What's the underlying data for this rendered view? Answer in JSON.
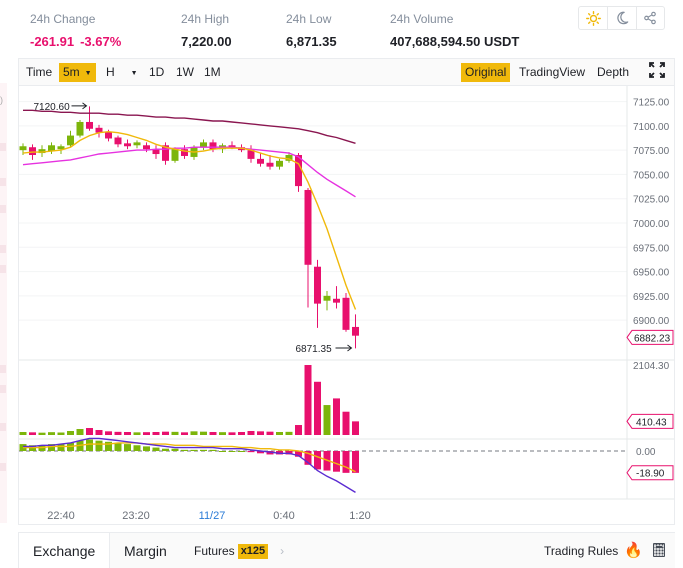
{
  "stats": [
    {
      "label": "24h Change",
      "value": "-261.91",
      "value2": "-3.67%",
      "negative": true
    },
    {
      "label": "24h High",
      "value": "7,220.00"
    },
    {
      "label": "24h Low",
      "value": "6,871.35"
    },
    {
      "label": "24h Volume",
      "value": "407,688,594.50 USDT"
    }
  ],
  "theme_icons": [
    "sun-icon",
    "moon-icon",
    "share-icon"
  ],
  "toolbar": {
    "time_label": "Time",
    "interval": "5m",
    "hour": "H",
    "d1": "1D",
    "w1": "1W",
    "m1": "1M",
    "original": "Original",
    "tradingview": "TradingView",
    "depth": "Depth"
  },
  "colors": {
    "up": "#7cb50a",
    "down": "#e8106d",
    "ma7": "#f0b90b",
    "ma25": "#e632e0",
    "ma99": "#8a1650",
    "accent": "#f0b90b"
  },
  "chart_data": {
    "type": "candlestick",
    "price_axis": {
      "ticks": [
        7125,
        7100,
        7075,
        7050,
        7025,
        7000,
        6975,
        6950,
        6925,
        6900
      ],
      "tick_labels": [
        "7125.00",
        "7100.00",
        "7075.00",
        "7050.00",
        "7025.00",
        "7000.00",
        "6975.00",
        "6950.00",
        "6925.00",
        "6900.00"
      ],
      "range": [
        6860,
        7140
      ]
    },
    "current_price": "6882.23",
    "high_marker": "7120.60",
    "low_marker": "6871.35",
    "volume_axis": {
      "top_label": "2104.30",
      "current_label": "410.43"
    },
    "macd_axis": {
      "zero_label": "0.00",
      "current_label": "-18.90"
    },
    "time_labels": [
      "22:40",
      "23:20",
      "11/27",
      "0:40",
      "1:20"
    ],
    "candles": [
      {
        "o": 7075,
        "h": 7082,
        "l": 7070,
        "c": 7079
      },
      {
        "o": 7078,
        "h": 7081,
        "l": 7065,
        "c": 7070
      },
      {
        "o": 7072,
        "h": 7080,
        "l": 7068,
        "c": 7076
      },
      {
        "o": 7074,
        "h": 7083,
        "l": 7071,
        "c": 7080
      },
      {
        "o": 7076,
        "h": 7081,
        "l": 7071,
        "c": 7079
      },
      {
        "o": 7080,
        "h": 7095,
        "l": 7078,
        "c": 7090
      },
      {
        "o": 7090,
        "h": 7106,
        "l": 7088,
        "c": 7104
      },
      {
        "o": 7104,
        "h": 7120,
        "l": 7095,
        "c": 7097
      },
      {
        "o": 7098,
        "h": 7101,
        "l": 7088,
        "c": 7093
      },
      {
        "o": 7094,
        "h": 7096,
        "l": 7084,
        "c": 7087
      },
      {
        "o": 7088,
        "h": 7090,
        "l": 7078,
        "c": 7081
      },
      {
        "o": 7082,
        "h": 7086,
        "l": 7076,
        "c": 7079
      },
      {
        "o": 7080,
        "h": 7085,
        "l": 7077,
        "c": 7083
      },
      {
        "o": 7080,
        "h": 7083,
        "l": 7073,
        "c": 7076
      },
      {
        "o": 7076,
        "h": 7080,
        "l": 7066,
        "c": 7071
      },
      {
        "o": 7080,
        "h": 7083,
        "l": 7060,
        "c": 7064
      },
      {
        "o": 7064,
        "h": 7078,
        "l": 7062,
        "c": 7076
      },
      {
        "o": 7076,
        "h": 7080,
        "l": 7066,
        "c": 7069
      },
      {
        "o": 7068,
        "h": 7080,
        "l": 7065,
        "c": 7078
      },
      {
        "o": 7078,
        "h": 7086,
        "l": 7075,
        "c": 7083
      },
      {
        "o": 7083,
        "h": 7086,
        "l": 7073,
        "c": 7076
      },
      {
        "o": 7076,
        "h": 7082,
        "l": 7072,
        "c": 7080
      },
      {
        "o": 7080,
        "h": 7084,
        "l": 7076,
        "c": 7078
      },
      {
        "o": 7078,
        "h": 7081,
        "l": 7073,
        "c": 7075
      },
      {
        "o": 7075,
        "h": 7080,
        "l": 7062,
        "c": 7066
      },
      {
        "o": 7066,
        "h": 7072,
        "l": 7058,
        "c": 7061
      },
      {
        "o": 7062,
        "h": 7070,
        "l": 7055,
        "c": 7058
      },
      {
        "o": 7058,
        "h": 7066,
        "l": 7055,
        "c": 7064
      },
      {
        "o": 7064,
        "h": 7073,
        "l": 7062,
        "c": 7070
      },
      {
        "o": 7070,
        "h": 7072,
        "l": 7032,
        "c": 7038
      },
      {
        "o": 7034,
        "h": 7036,
        "l": 6913,
        "c": 6957
      },
      {
        "o": 6955,
        "h": 6962,
        "l": 6892,
        "c": 6917
      },
      {
        "o": 6920,
        "h": 6930,
        "l": 6910,
        "c": 6925
      },
      {
        "o": 6922,
        "h": 6935,
        "l": 6912,
        "c": 6918
      },
      {
        "o": 6923,
        "h": 6928,
        "l": 6888,
        "c": 6890
      },
      {
        "o": 6893,
        "h": 6906,
        "l": 6871,
        "c": 6884
      }
    ],
    "volume": [
      90,
      80,
      70,
      85,
      75,
      120,
      180,
      210,
      150,
      110,
      95,
      90,
      80,
      85,
      90,
      100,
      95,
      80,
      110,
      100,
      90,
      85,
      80,
      90,
      120,
      110,
      100,
      90,
      95,
      300,
      2104,
      1600,
      900,
      1100,
      700,
      410
    ],
    "ma7": [
      7072,
      7073,
      7073,
      7074,
      7075,
      7078,
      7085,
      7090,
      7093,
      7094,
      7093,
      7091,
      7088,
      7085,
      7081,
      7078,
      7076,
      7074,
      7073,
      7074,
      7076,
      7077,
      7077,
      7077,
      7075,
      7072,
      7069,
      7067,
      7066,
      7061,
      7042,
      7019,
      6994,
      6965,
      6936,
      6911
    ],
    "ma25": [
      7060,
      7061,
      7062,
      7063,
      7064,
      7065,
      7067,
      7069,
      7071,
      7072,
      7073,
      7074,
      7075,
      7075,
      7076,
      7076,
      7077,
      7077,
      7078,
      7078,
      7078,
      7078,
      7078,
      7077,
      7076,
      7075,
      7074,
      7073,
      7072,
      7068,
      7060,
      7052,
      7045,
      7039,
      7033,
      7027
    ],
    "ma99": [
      7116,
      7116,
      7115,
      7115,
      7114,
      7114,
      7113,
      7113,
      7113,
      7112,
      7112,
      7111,
      7111,
      7110,
      7109,
      7109,
      7108,
      7108,
      7107,
      7106,
      7105,
      7105,
      7104,
      7103,
      7102,
      7101,
      7100,
      7099,
      7098,
      7097,
      7095,
      7093,
      7090,
      7088,
      7085,
      7082
    ],
    "macd_hist": [
      6,
      5,
      5,
      6,
      6,
      7,
      9,
      10,
      9,
      8,
      7,
      6,
      5,
      4,
      3,
      2,
      2,
      1,
      1,
      1,
      1,
      0,
      0,
      0,
      -1,
      -2,
      -3,
      -3,
      -3,
      -5,
      -12,
      -16,
      -17,
      -18,
      -19,
      -19
    ],
    "macd_dif": [
      4,
      4,
      5,
      5,
      6,
      7,
      9,
      11,
      11,
      10,
      9,
      8,
      7,
      6,
      5,
      4,
      3,
      3,
      3,
      3,
      3,
      2,
      2,
      2,
      1,
      0,
      -1,
      -2,
      -2,
      -4,
      -10,
      -17,
      -22,
      -26,
      -31,
      -36
    ],
    "macd_dea": [
      3,
      3,
      3,
      4,
      4,
      4,
      5,
      6,
      6,
      6,
      7,
      7,
      7,
      6,
      6,
      6,
      5,
      5,
      5,
      4,
      4,
      4,
      4,
      3,
      3,
      2,
      2,
      1,
      1,
      0,
      -2,
      -5,
      -8,
      -11,
      -14,
      -18
    ]
  },
  "bottom": {
    "exchange": "Exchange",
    "margin": "Margin",
    "futures": "Futures",
    "leverage": "x125",
    "trading_rules": "Trading Rules"
  }
}
